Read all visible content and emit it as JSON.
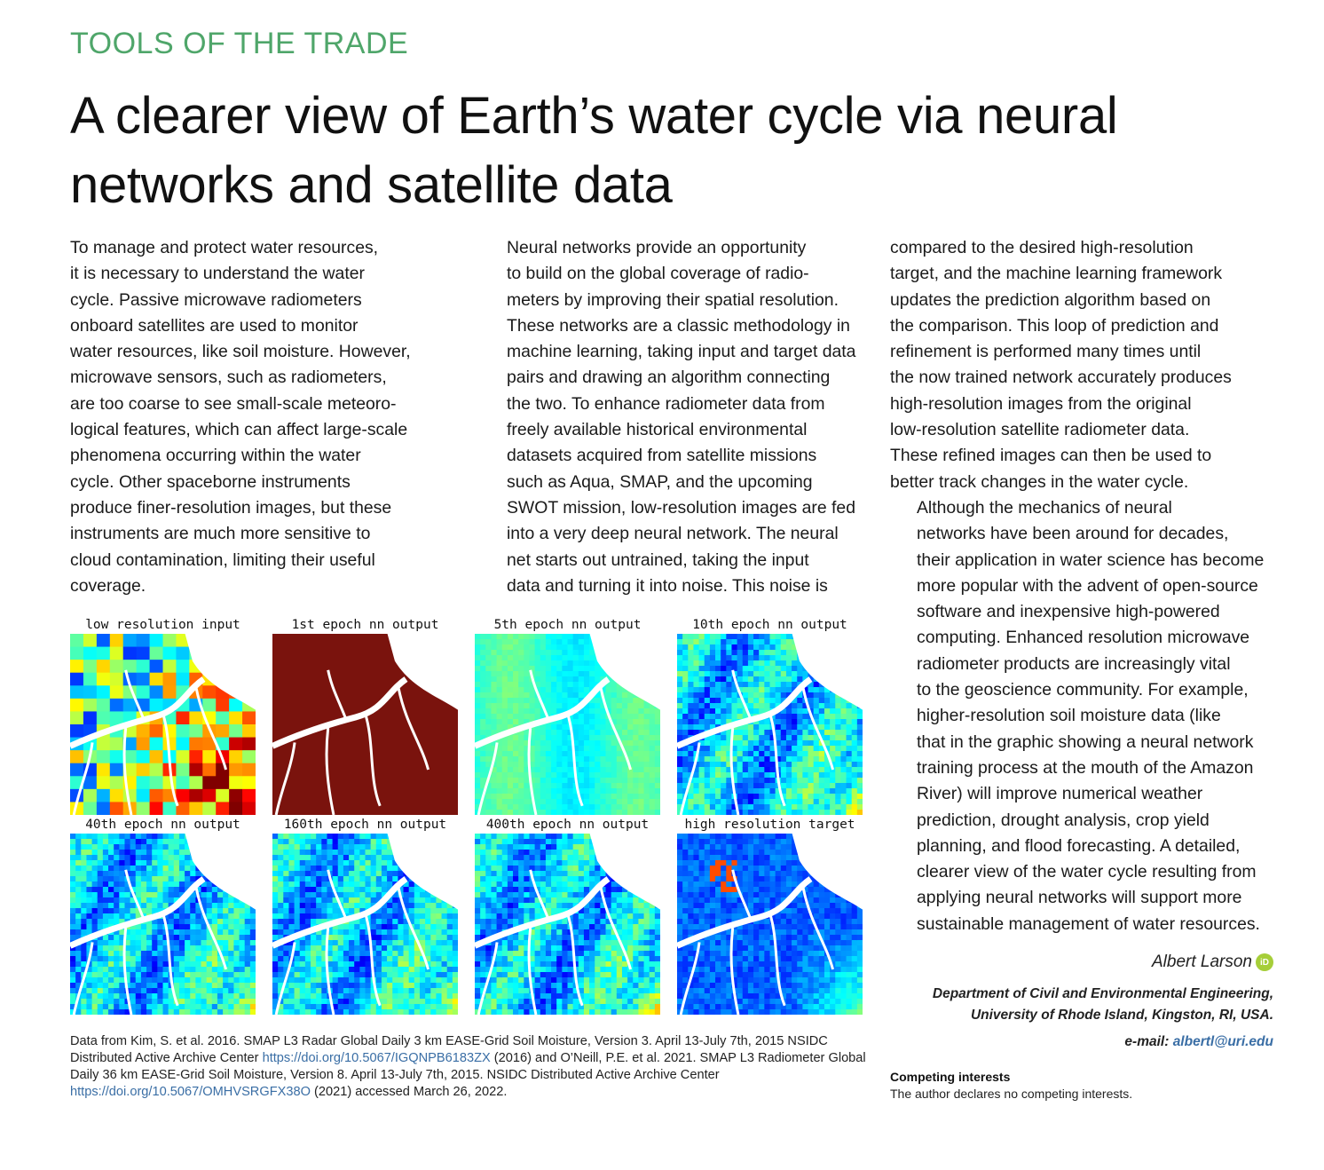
{
  "section_tag": "TOOLS OF THE TRADE",
  "headline": "A clearer view of Earth’s water cycle via neural networks and satellite data",
  "column1": [
    "To manage and protect water resources,",
    "it is necessary to understand the water",
    "cycle. Passive microwave radiometers",
    "onboard satellites are used to monitor",
    "water resources, like soil moisture. However,",
    "microwave sensors, such as radiometers,",
    "are too coarse to see small-scale meteoro-",
    "logical features, which can affect large-scale",
    "phenomena occurring within the water",
    "cycle. Other spaceborne instruments",
    "produce finer-resolution images, but these",
    "instruments are much more sensitive to",
    "cloud contamination, limiting their useful",
    "coverage."
  ],
  "column2": [
    "Neural networks provide an opportunity",
    "to build on the global coverage of radio-",
    "meters by improving their spatial resolution.",
    "These networks are a classic methodology in",
    "machine learning, taking input and target data",
    "pairs and drawing an algorithm connecting",
    "the two. To enhance radiometer data from",
    "freely available historical environmental",
    "datasets acquired from satellite missions",
    "such as Aqua, SMAP, and the upcoming",
    "SWOT mission, low-resolution images are fed",
    "into a very deep neural network. The neural",
    "net starts out untrained, taking the input",
    "data and turning it into noise. This noise is"
  ],
  "column3_p1": [
    "compared to the desired high-resolution",
    "target, and the machine learning framework",
    "updates the prediction algorithm based on",
    "the comparison. This loop of prediction and",
    "refinement is performed many times until",
    "the now trained network accurately produces",
    "high-resolution images from the original",
    "low-resolution satellite radiometer data.",
    "These refined images can then be used to",
    "better track changes in the water cycle."
  ],
  "column3_p2": [
    "Although the mechanics of neural",
    "networks have been around for decades,",
    "their application in water science has become",
    "more popular with the advent of open-source",
    "software and inexpensive high-powered",
    "computing. Enhanced resolution microwave",
    "radiometer products are increasingly vital",
    "to the geoscience community. For example,",
    "higher-resolution soil moisture data (like",
    "that in the graphic showing a neural network",
    "training process at the mouth of the Amazon",
    "River) will improve numerical weather",
    "prediction, drought analysis, crop yield",
    "planning, and flood forecasting. A detailed,",
    "clearer view of the water cycle resulting from",
    "applying neural networks will support more",
    "sustainable management of water resources."
  ],
  "figure_panels": [
    {
      "title": "low resolution input",
      "style": "lowres"
    },
    {
      "title": "1st epoch nn output",
      "style": "red"
    },
    {
      "title": "5th epoch nn output",
      "style": "light"
    },
    {
      "title": "10th epoch nn output",
      "style": "blue"
    },
    {
      "title": "40th epoch nn output",
      "style": "blue"
    },
    {
      "title": "160th epoch nn output",
      "style": "blue"
    },
    {
      "title": "400th epoch nn output",
      "style": "blue"
    },
    {
      "title": "high resolution target",
      "style": "target"
    }
  ],
  "caption": {
    "part1": "Data from Kim, S. et al. 2016. SMAP L3 Radar Global Daily 3 km EASE-Grid Soil Moisture, Version 3. April 13-July 7th, 2015 NSIDC Distributed Active Archive Center ",
    "link1": "https://doi.org/10.5067/IGQNPB6183ZX",
    "part2": " (2016) and O’Neill, P.E. et al. 2021. SMAP L3 Radiometer Global Daily 36 km EASE-Grid Soil Moisture, Version 8. April 13-July 7th, 2015. NSIDC Distributed Active Archive Center ",
    "link2": "https://doi.org/10.5067/OMHVSRGFX38O",
    "part3": " (2021) accessed March 26, 2022."
  },
  "author": {
    "name": "Albert Larson",
    "orcid_label": "iD",
    "affiliation_line1": "Department of Civil and Environmental Engineering,",
    "affiliation_line2": "University of Rhode Island, Kingston, RI, USA.",
    "email_label": "e-mail: ",
    "email": "albertl@uri.edu"
  },
  "competing_interests": {
    "heading": "Competing interests",
    "text": "The author declares no competing interests."
  },
  "colors": {
    "section_tag": "#4fa66a",
    "link": "#3a6ea5",
    "orcid": "#a6ce39"
  }
}
